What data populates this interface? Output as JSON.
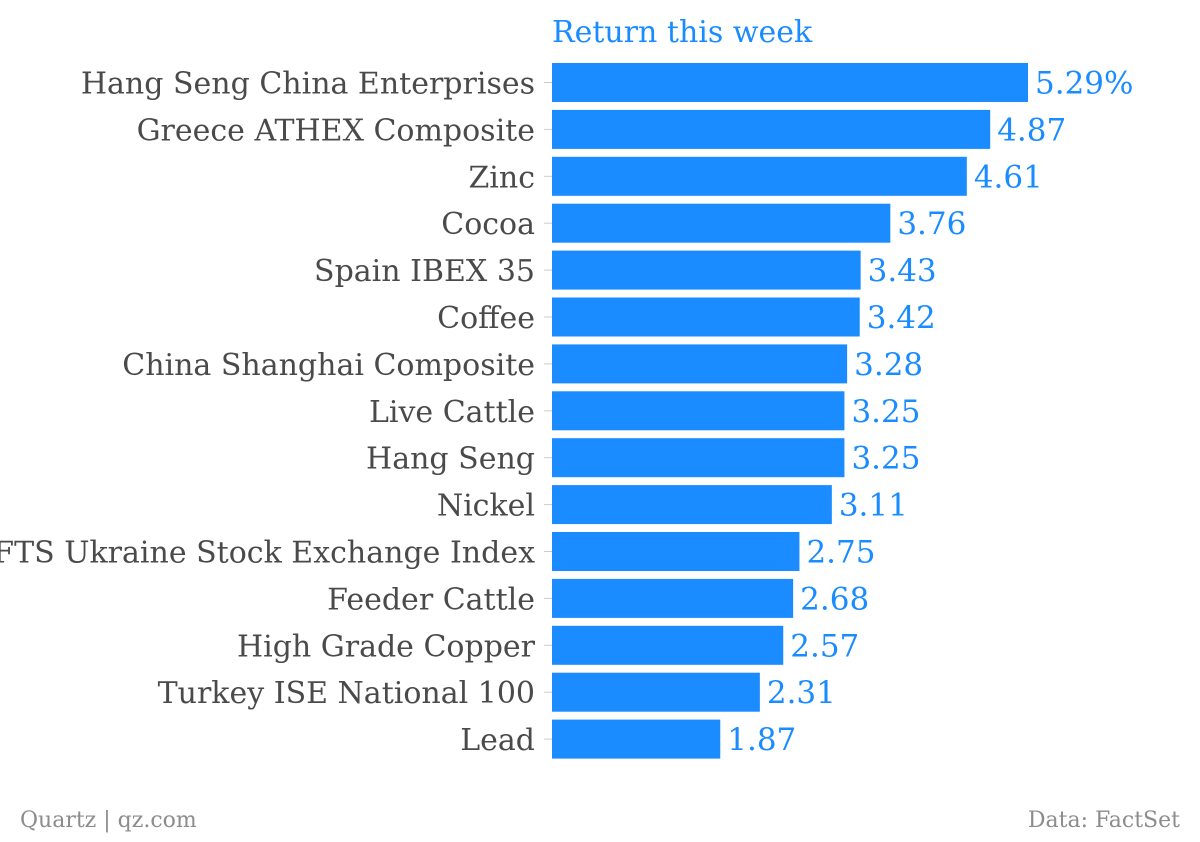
{
  "chart_data": {
    "type": "bar",
    "orientation": "horizontal",
    "series_title": "Return this week",
    "categories": [
      "Hang Seng China Enterprises",
      "Greece ATHEX Composite",
      "Zinc",
      "Cocoa",
      "Spain IBEX 35",
      "Coffee",
      "China Shanghai Composite",
      "Live Cattle",
      "Hang Seng",
      "Nickel",
      "PFTS Ukraine Stock Exchange Index",
      "Feeder Cattle",
      "High Grade Copper",
      "Turkey ISE National 100",
      "Lead"
    ],
    "values": [
      5.29,
      4.87,
      4.61,
      3.76,
      3.43,
      3.42,
      3.28,
      3.25,
      3.25,
      3.11,
      2.75,
      2.68,
      2.57,
      2.31,
      1.87
    ],
    "value_labels": [
      "5.29%",
      "4.87",
      "4.61",
      "3.76",
      "3.43",
      "3.42",
      "3.28",
      "3.25",
      "3.25",
      "3.11",
      "2.75",
      "2.68",
      "2.57",
      "2.31",
      "1.87"
    ],
    "xlim": [
      0,
      5.29
    ],
    "grid": false,
    "legend": "none",
    "bar_color": "#1a8cff",
    "label_color": "#4a4a4a",
    "value_label_color": "#1a8cff"
  },
  "footer": {
    "source_left": "Quartz | qz.com",
    "source_right": "Data: FactSet"
  }
}
